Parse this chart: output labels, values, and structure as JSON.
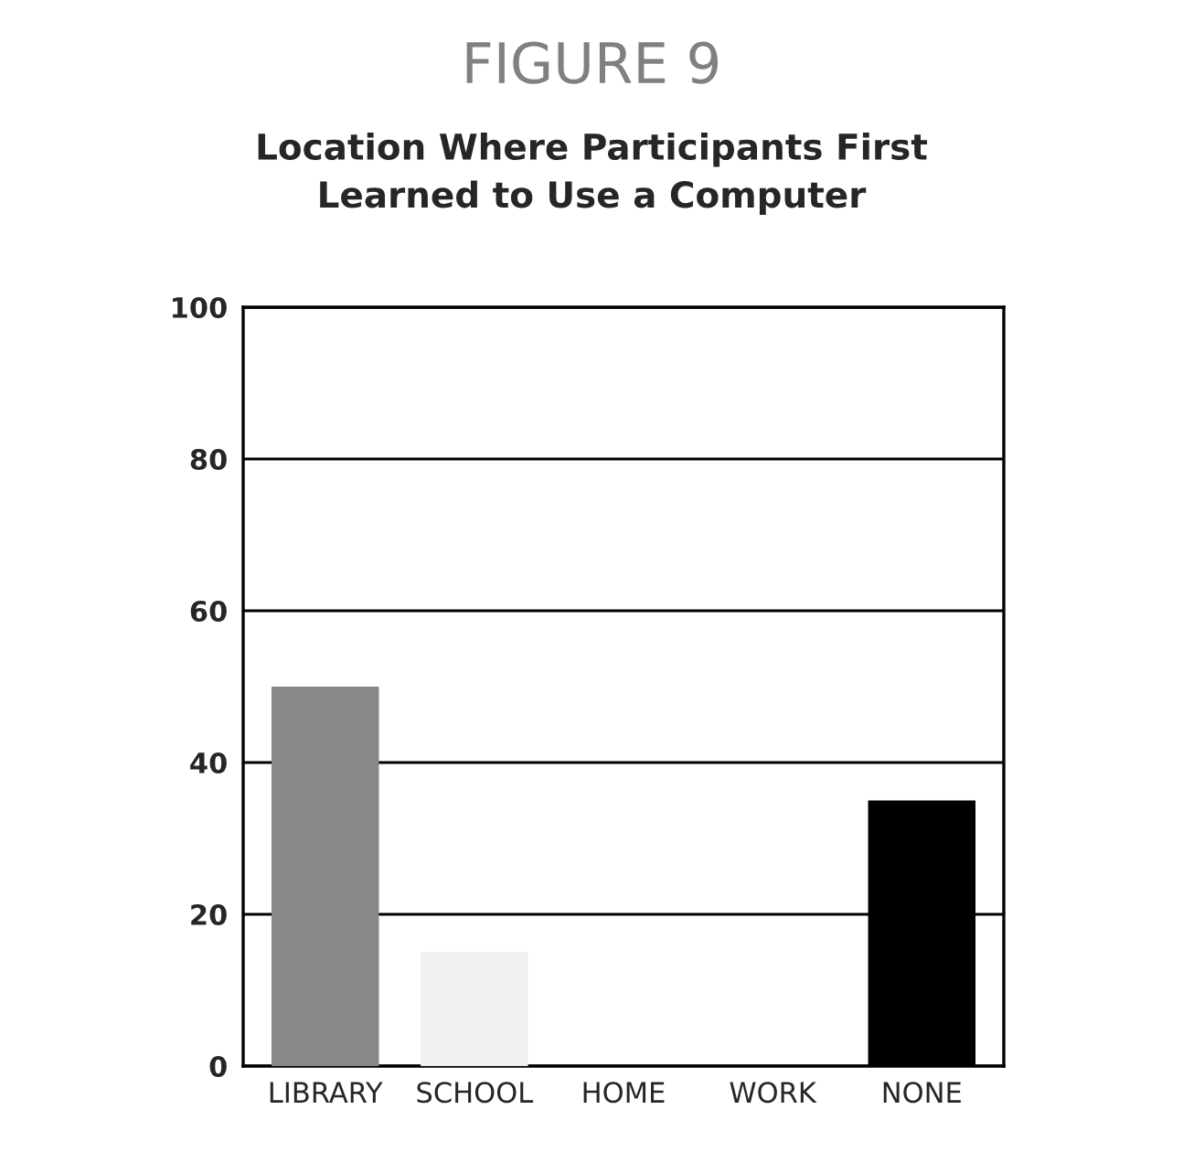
{
  "chart_data": {
    "type": "bar",
    "title": "FIGURE 9",
    "subtitle": "Location Where Participants First\nLearned to Use a Computer",
    "categories": [
      "LIBRARY",
      "SCHOOL",
      "HOME",
      "WORK",
      "NONE"
    ],
    "values": [
      50,
      15,
      0,
      0,
      35
    ],
    "colors": [
      "#888888",
      "#f0f0f0",
      null,
      null,
      "#000000"
    ],
    "ylim": [
      0,
      100
    ],
    "yticks": [
      0,
      20,
      40,
      60,
      80,
      100
    ],
    "grid": "y"
  }
}
